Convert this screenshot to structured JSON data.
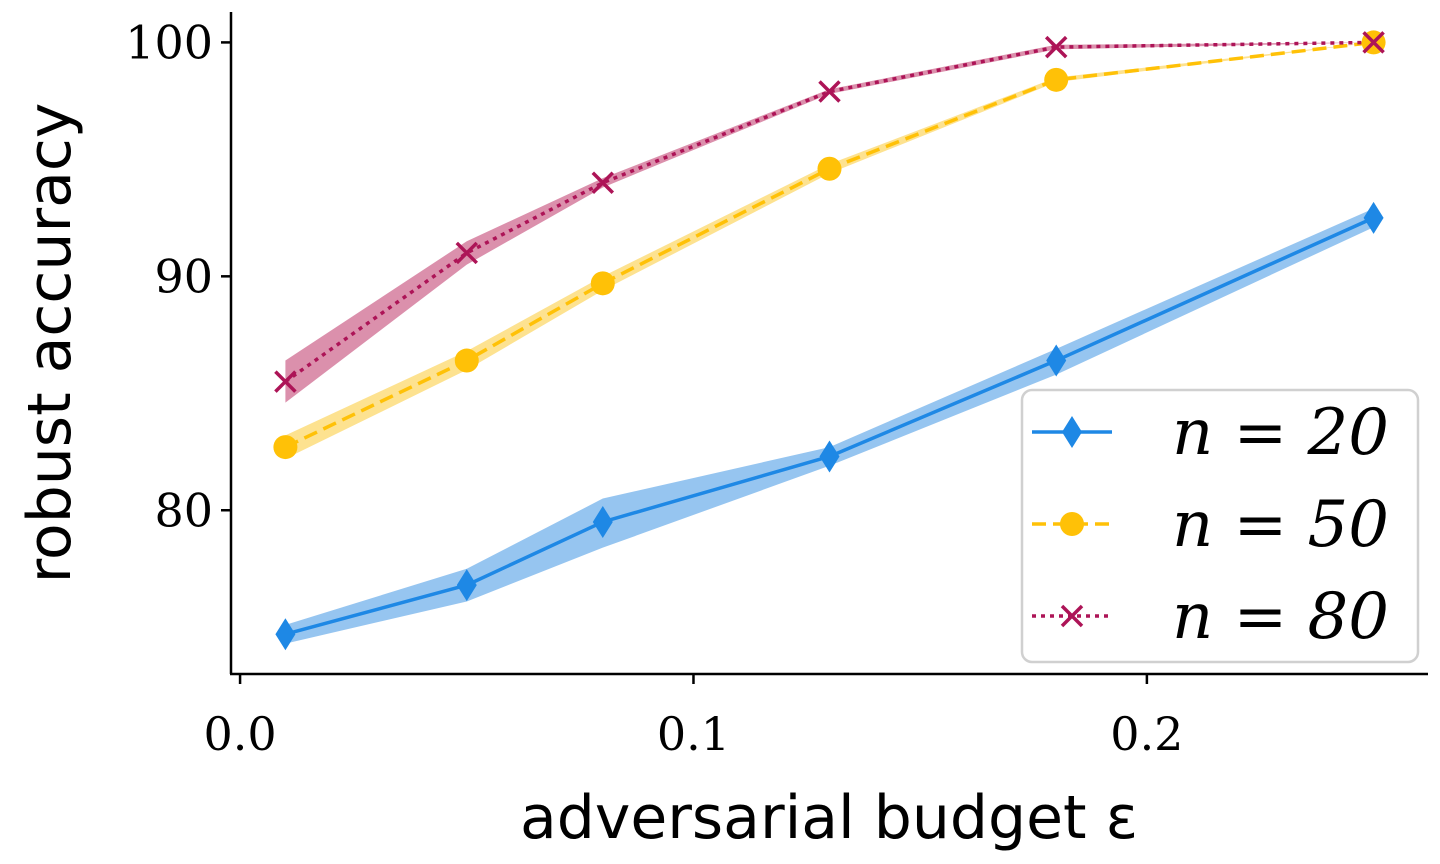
{
  "chart_data": {
    "type": "line",
    "title": "",
    "xlabel": "adversarial budget ε",
    "ylabel": "robust accuracy",
    "xlim": [
      -0.002,
      0.262
    ],
    "ylim": [
      73.0,
      101.3
    ],
    "xticks": [
      0.0,
      0.1,
      0.2
    ],
    "xtick_labels": [
      "0.0",
      "0.1",
      "0.2"
    ],
    "yticks": [
      80,
      90,
      100
    ],
    "ytick_labels": [
      "80",
      "90",
      "100"
    ],
    "grid": false,
    "legend_position": "bottom-right",
    "x": [
      0.01,
      0.05,
      0.08,
      0.13,
      0.18,
      0.25
    ],
    "series": [
      {
        "name": "n = 20",
        "color": "#1e88e5",
        "band_color": "#90c2ef",
        "marker": "diamond",
        "line_style": "solid",
        "values": [
          74.7,
          76.8,
          79.5,
          82.3,
          86.4,
          92.5
        ],
        "band_low": [
          74.3,
          76.1,
          78.4,
          81.9,
          85.8,
          92.1
        ],
        "band_high": [
          75.1,
          77.5,
          80.5,
          82.7,
          86.9,
          92.9
        ]
      },
      {
        "name": "n = 50",
        "color": "#ffc107",
        "band_color": "#fde08a",
        "marker": "circle",
        "line_style": "dashed",
        "values": [
          82.7,
          86.4,
          89.7,
          94.6,
          98.4,
          100.0
        ],
        "band_low": [
          82.2,
          86.0,
          89.4,
          94.4,
          98.3,
          100.0
        ],
        "band_high": [
          83.2,
          86.8,
          90.0,
          94.8,
          98.5,
          100.0
        ]
      },
      {
        "name": "n = 80",
        "color": "#ad1457",
        "band_color": "#d98aa8",
        "marker": "x",
        "line_style": "dotted",
        "values": [
          85.5,
          91.0,
          94.0,
          97.9,
          99.8,
          100.0
        ],
        "band_low": [
          84.6,
          90.5,
          93.8,
          97.8,
          99.7,
          100.0
        ],
        "band_high": [
          86.4,
          91.5,
          94.2,
          98.0,
          99.9,
          100.0
        ]
      }
    ]
  }
}
